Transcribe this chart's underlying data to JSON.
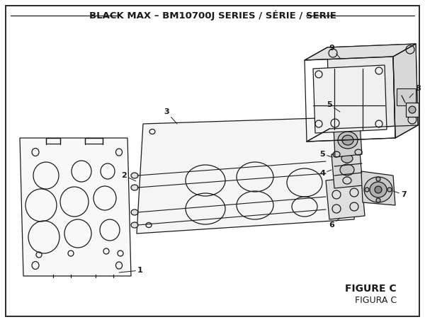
{
  "title": "BLACK MAX – BM10700J SERIES / SÉRIE / SERIE",
  "figure_label": "FIGURE C",
  "figura_label": "FIGURA C",
  "bg_color": "#ffffff",
  "line_color": "#1a1a1a",
  "title_fontsize": 9.5,
  "fig_label_fontsize": 10,
  "border_color": "#1a1a1a"
}
